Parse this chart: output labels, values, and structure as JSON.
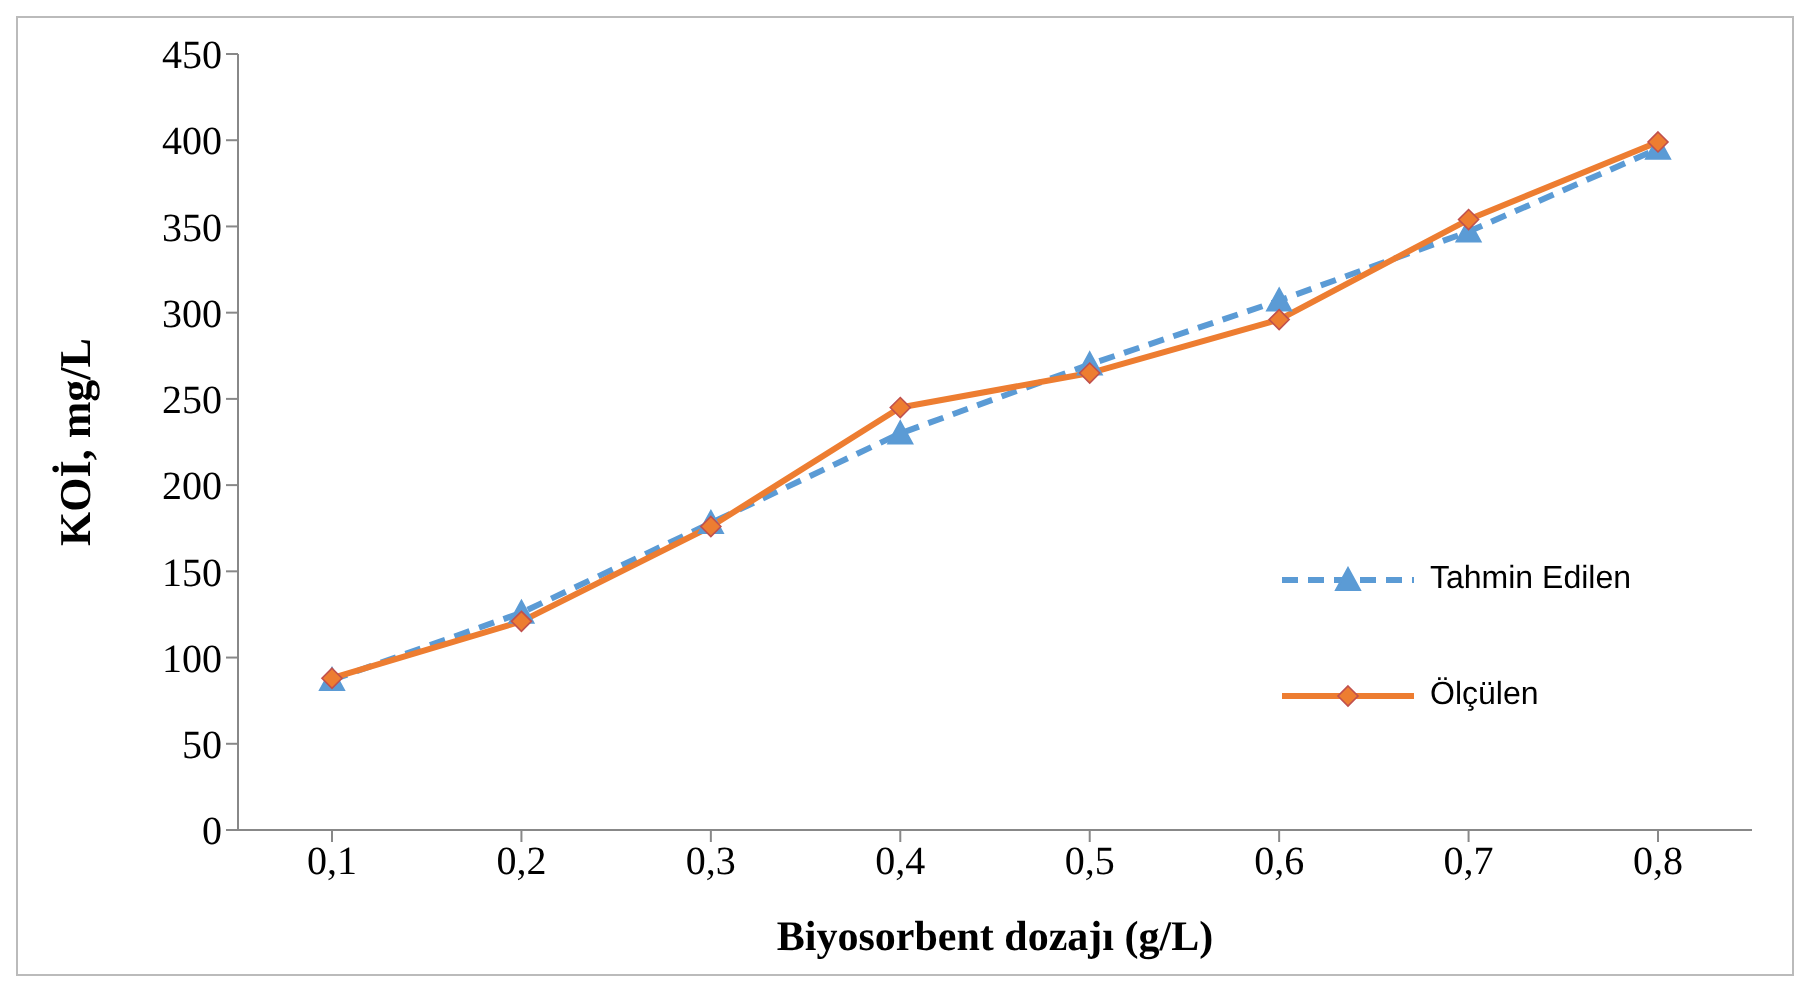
{
  "chart_data": {
    "type": "line",
    "xlabel": "Biyosorbent dozajı (g/L)",
    "ylabel": "KOİ, mg/L",
    "categories": [
      "0,1",
      "0,2",
      "0,3",
      "0,4",
      "0,5",
      "0,6",
      "0,7",
      "0,8"
    ],
    "series": [
      {
        "name": "Tahmin Edilen",
        "color": "#5b9bd5",
        "marker": "triangle",
        "line_style": "dashed",
        "values": [
          87,
          126,
          178,
          230,
          270,
          307,
          347,
          395
        ]
      },
      {
        "name": "Ölçülen",
        "color": "#ed7d31",
        "marker": "diamond",
        "line_style": "solid",
        "values": [
          88,
          121,
          176,
          245,
          265,
          296,
          354,
          399
        ]
      }
    ],
    "ylim": [
      0,
      450
    ],
    "yticks": [
      0,
      50,
      100,
      150,
      200,
      250,
      300,
      350,
      400,
      450
    ],
    "grid": false,
    "legend": "right"
  }
}
